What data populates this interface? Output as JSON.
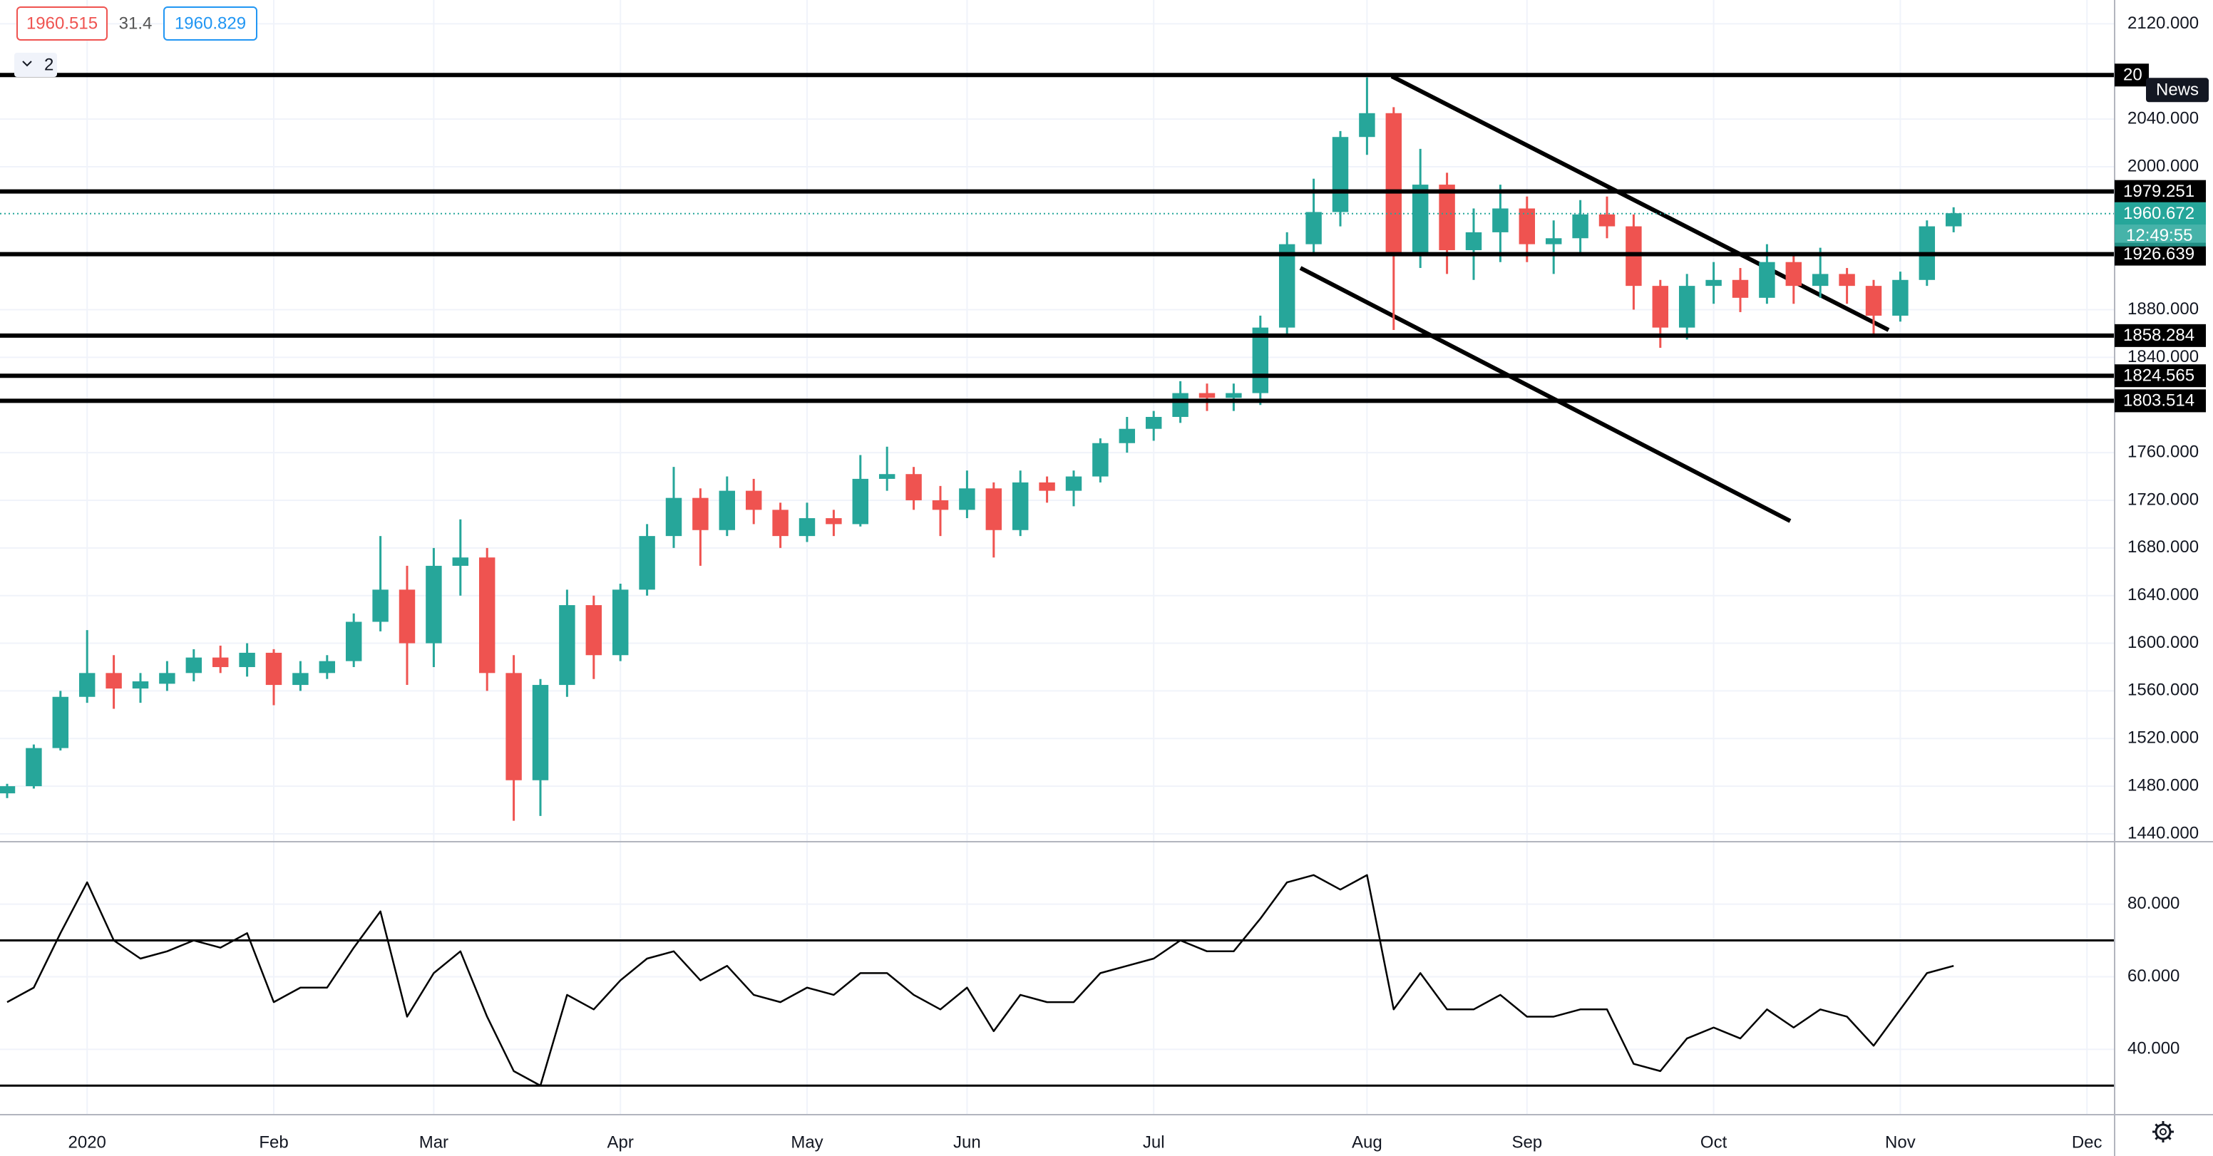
{
  "chart_data": {
    "type": "candlestick",
    "bid": 1960.515,
    "spread": 31.4,
    "ask": 1960.829,
    "pane_count": 2,
    "news": "News",
    "categories": [
      null,
      null,
      null,
      "2020",
      null,
      null,
      null,
      null,
      null,
      null,
      "Feb",
      null,
      null,
      null,
      null,
      null,
      "Mar",
      null,
      null,
      null,
      null,
      null,
      null,
      "Apr",
      null,
      null,
      null,
      null,
      null,
      null,
      "May",
      null,
      null,
      null,
      null,
      null,
      "Jun",
      null,
      null,
      null,
      null,
      null,
      null,
      "Jul",
      null,
      null,
      null,
      null,
      null,
      null,
      null,
      "Aug",
      null,
      null,
      null,
      null,
      null,
      "Sep",
      null,
      null,
      null,
      null,
      null,
      null,
      "Oct",
      null,
      null,
      null,
      null,
      null,
      null,
      "Nov",
      null,
      null,
      null,
      null,
      null,
      null,
      "Dec"
    ],
    "open": [
      1474,
      1480,
      1512,
      1555,
      1575,
      1562,
      1566,
      1575,
      1588,
      1580,
      1592,
      1565,
      1575,
      1585,
      1618,
      1645,
      1600,
      1665,
      1672,
      1575,
      1485,
      1565,
      1632,
      1590,
      1645,
      1690,
      1722,
      1695,
      1728,
      1712,
      1690,
      1705,
      1700,
      1738,
      1742,
      1720,
      1712,
      1730,
      1695,
      1735,
      1728,
      1740,
      1768,
      1780,
      1790,
      1810,
      1806,
      1810,
      1865,
      1935,
      1962,
      2025,
      2045,
      1925,
      1985,
      1930,
      1945,
      1965,
      1935,
      1940,
      1960,
      1950,
      1900,
      1865,
      1900,
      1905,
      1890,
      1920,
      1900,
      1910,
      1900,
      1875,
      1905,
      1950,
      null,
      null,
      null,
      null,
      null
    ],
    "high": [
      1482,
      1515,
      1560,
      1611,
      1590,
      1575,
      1585,
      1595,
      1598,
      1600,
      1595,
      1585,
      1590,
      1625,
      1690,
      1665,
      1680,
      1704,
      1680,
      1590,
      1570,
      1645,
      1640,
      1650,
      1700,
      1748,
      1730,
      1740,
      1738,
      1718,
      1718,
      1712,
      1758,
      1765,
      1748,
      1732,
      1745,
      1735,
      1745,
      1740,
      1745,
      1772,
      1790,
      1795,
      1820,
      1818,
      1818,
      1875,
      1945,
      1990,
      2030,
      2075,
      2050,
      2015,
      1995,
      1965,
      1985,
      1975,
      1955,
      1972,
      1975,
      1960,
      1905,
      1910,
      1920,
      1915,
      1935,
      1925,
      1932,
      1915,
      1905,
      1912,
      1955,
      1966,
      null,
      null,
      null,
      null,
      null
    ],
    "low": [
      1470,
      1478,
      1510,
      1550,
      1545,
      1550,
      1560,
      1568,
      1575,
      1572,
      1548,
      1560,
      1570,
      1580,
      1610,
      1565,
      1580,
      1640,
      1560,
      1451,
      1455,
      1555,
      1570,
      1585,
      1640,
      1680,
      1665,
      1690,
      1700,
      1680,
      1685,
      1690,
      1698,
      1728,
      1712,
      1690,
      1705,
      1672,
      1690,
      1718,
      1715,
      1735,
      1760,
      1770,
      1785,
      1795,
      1795,
      1800,
      1860,
      1925,
      1950,
      2010,
      1863,
      1915,
      1910,
      1905,
      1920,
      1920,
      1910,
      1925,
      1940,
      1880,
      1848,
      1855,
      1885,
      1878,
      1885,
      1885,
      1890,
      1885,
      1860,
      1870,
      1900,
      1945,
      null,
      null,
      null,
      null,
      null
    ],
    "close": [
      1480,
      1512,
      1555,
      1575,
      1562,
      1568,
      1575,
      1588,
      1580,
      1592,
      1565,
      1575,
      1585,
      1618,
      1645,
      1600,
      1665,
      1672,
      1575,
      1485,
      1565,
      1632,
      1590,
      1645,
      1690,
      1722,
      1695,
      1728,
      1712,
      1690,
      1705,
      1700,
      1738,
      1742,
      1720,
      1712,
      1730,
      1695,
      1735,
      1728,
      1740,
      1768,
      1780,
      1790,
      1810,
      1806,
      1810,
      1865,
      1935,
      1962,
      2025,
      2045,
      1925,
      1985,
      1930,
      1945,
      1965,
      1935,
      1940,
      1960,
      1950,
      1900,
      1865,
      1900,
      1905,
      1890,
      1920,
      1900,
      1910,
      1900,
      1875,
      1905,
      1950,
      1961,
      null,
      null,
      null,
      null,
      null
    ],
    "up_color": "#26a69a",
    "down_color": "#ef5350",
    "ylim": [
      1434,
      2140
    ],
    "yticks": [
      {
        "value": 2120,
        "label": "2120.000"
      },
      {
        "value": 2040,
        "label": "2040.000"
      },
      {
        "value": 2000,
        "label": "2000.000"
      },
      {
        "value": 1880,
        "label": "1880.000"
      },
      {
        "value": 1840,
        "label": "1840.000"
      },
      {
        "value": 1760,
        "label": "1760.000"
      },
      {
        "value": 1720,
        "label": "1720.000"
      },
      {
        "value": 1680,
        "label": "1680.000"
      },
      {
        "value": 1640,
        "label": "1640.000"
      },
      {
        "value": 1600,
        "label": "1600.000"
      },
      {
        "value": 1560,
        "label": "1560.000"
      },
      {
        "value": 1520,
        "label": "1520.000"
      },
      {
        "value": 1480,
        "label": "1480.000"
      },
      {
        "value": 1440,
        "label": "1440.000"
      }
    ],
    "levels": [
      {
        "value": 2077,
        "label": "20"
      },
      1979.251,
      1926.639,
      1858.284,
      1824.565,
      1803.514
    ],
    "current_price": 1960.672,
    "countdown": "12:49:55",
    "grid": true,
    "rsi": {
      "values": [
        53,
        57,
        72,
        86,
        70,
        65,
        67,
        70,
        68,
        72,
        53,
        57,
        57,
        68,
        78,
        49,
        61,
        67,
        49,
        34,
        30,
        55,
        51,
        59,
        65,
        67,
        59,
        63,
        55,
        53,
        57,
        55,
        61,
        61,
        55,
        51,
        57,
        45,
        55,
        53,
        53,
        61,
        63,
        65,
        70,
        67,
        67,
        76,
        86,
        88,
        84,
        88,
        51,
        61,
        51,
        51,
        55,
        49,
        49,
        51,
        51,
        36,
        34,
        43,
        46,
        43,
        51,
        46,
        51,
        49,
        41,
        51,
        61,
        63,
        null,
        null,
        null,
        null,
        null
      ],
      "ylim": [
        22,
        97
      ],
      "yticks": [
        {
          "value": 80,
          "label": "80.000"
        },
        {
          "value": 60,
          "label": "60.000"
        },
        {
          "value": 40,
          "label": "40.000"
        }
      ],
      "levels": [
        70,
        30
      ],
      "color": "#000000"
    }
  }
}
